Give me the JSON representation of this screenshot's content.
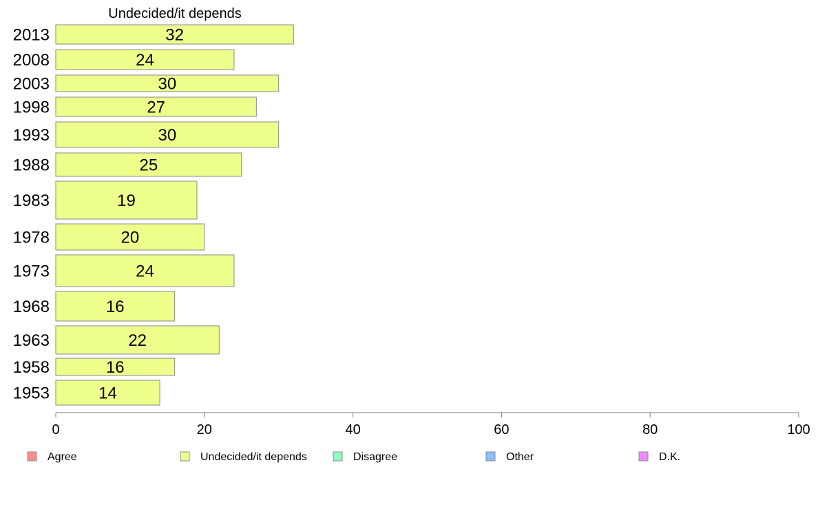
{
  "chart_data": {
    "type": "bar",
    "orientation": "horizontal",
    "title": "Undecided/it depends",
    "categories": [
      "2013",
      "2008",
      "2003",
      "1998",
      "1993",
      "1988",
      "1983",
      "1978",
      "1973",
      "1968",
      "1963",
      "1958",
      "1953"
    ],
    "series": [
      {
        "name": "Undecided/it depends",
        "values": [
          32,
          24,
          30,
          27,
          30,
          25,
          19,
          20,
          24,
          16,
          22,
          16,
          14
        ],
        "color": "#eeff8c"
      }
    ],
    "xlim": [
      0,
      100
    ],
    "xticks": [
      0,
      20,
      40,
      60,
      80,
      100
    ],
    "grid": false,
    "legend": {
      "placement": "bottom",
      "entries": [
        {
          "name": "Agree",
          "color": "#ff8c8c"
        },
        {
          "name": "Undecided/it depends",
          "color": "#eeff8c"
        },
        {
          "name": "Disagree",
          "color": "#8cffbe"
        },
        {
          "name": "Other",
          "color": "#8cbeff"
        },
        {
          "name": "D.K.",
          "color": "#ee8cff"
        }
      ]
    }
  }
}
